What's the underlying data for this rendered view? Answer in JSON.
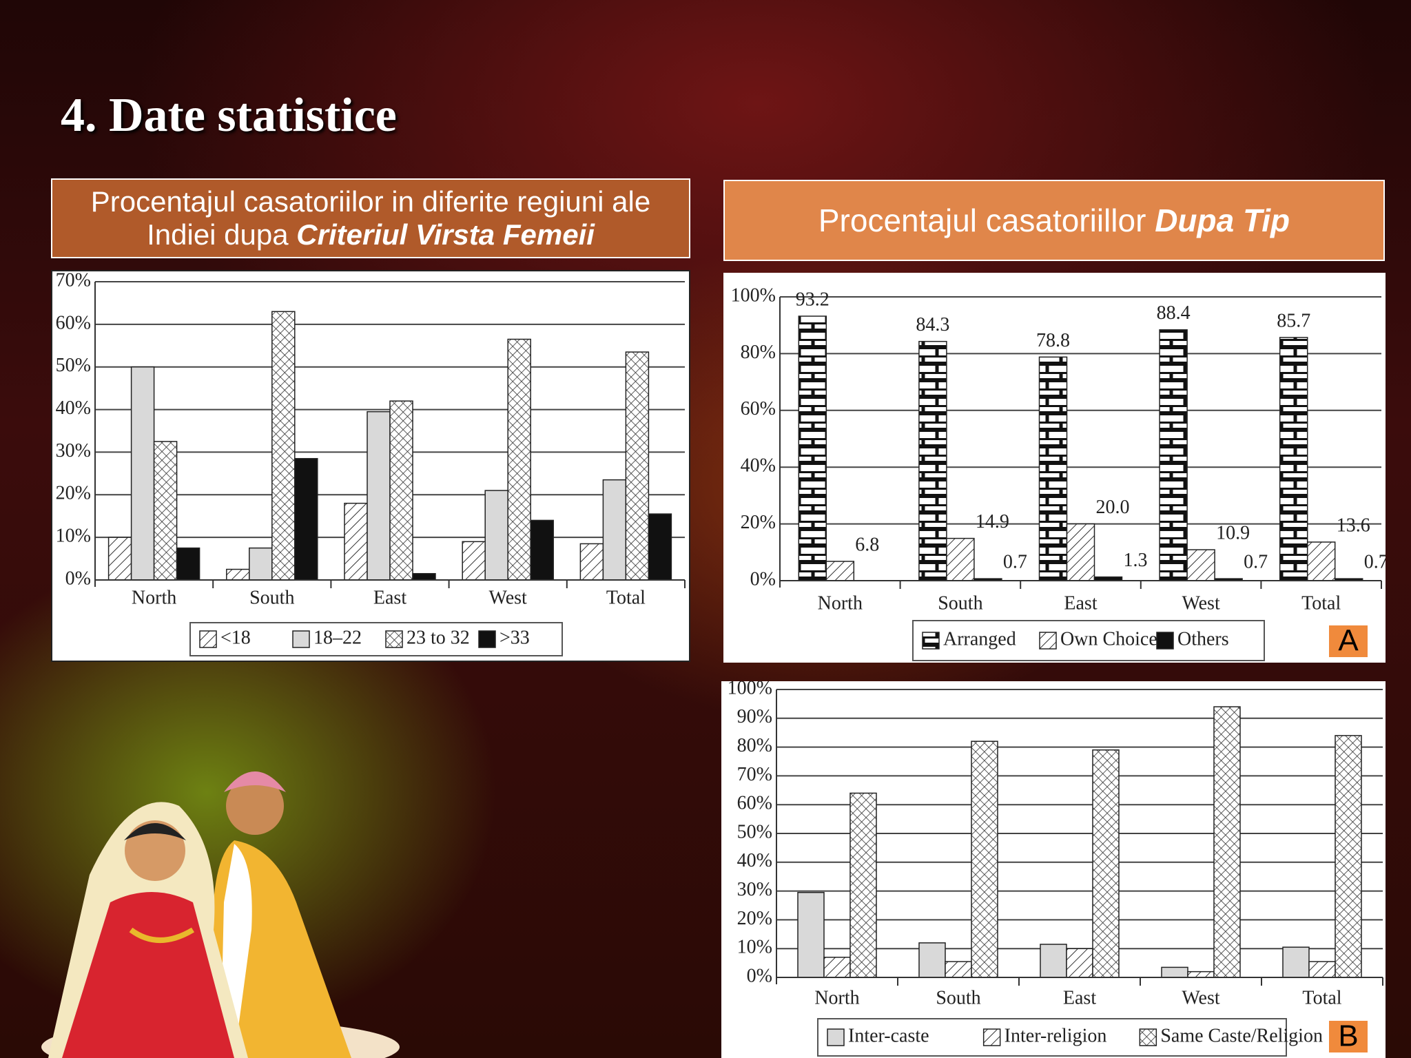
{
  "header": {
    "title": "4. Date statistice"
  },
  "chart_data": [
    {
      "type": "bar",
      "title": "Procentajul casatoriilor in diferite regiuni ale Indiei dupa",
      "title_emphasis": "Criteriul Virsta Femeii",
      "categories": [
        "North",
        "South",
        "East",
        "West",
        "Total"
      ],
      "series": [
        {
          "name": "<18",
          "color": "#ffffff",
          "pattern": "diagonal",
          "values": [
            10,
            2.5,
            18,
            9,
            8.5
          ]
        },
        {
          "name": "18–22",
          "color": "#d9d9d9",
          "pattern": "solid",
          "values": [
            50,
            7.5,
            39.5,
            21,
            23.5
          ]
        },
        {
          "name": "23 to 32",
          "color": "#ffffff",
          "pattern": "crosshatch",
          "values": [
            32.5,
            63,
            42,
            56.5,
            53.5
          ]
        },
        {
          "name": ">33",
          "color": "#111111",
          "pattern": "solid",
          "values": [
            7.5,
            28.5,
            1.5,
            14,
            15.5
          ]
        }
      ],
      "ylim": [
        0,
        70
      ],
      "yticks": [
        {
          "value": 0,
          "label": "0%"
        },
        {
          "value": 10,
          "label": "10%"
        },
        {
          "value": 20,
          "label": "20%"
        },
        {
          "value": 30,
          "label": "30%"
        },
        {
          "value": 40,
          "label": "40%"
        },
        {
          "value": 50,
          "label": "50%"
        },
        {
          "value": 60,
          "label": "60%"
        },
        {
          "value": 70,
          "label": "70%"
        }
      ],
      "grid": true,
      "legend": "bottom"
    },
    {
      "type": "bar",
      "title": "Procentajul casatoriillor",
      "title_emphasis": "Dupa Tip",
      "panel_label": "A",
      "categories": [
        "North",
        "South",
        "East",
        "West",
        "Total"
      ],
      "series": [
        {
          "name": "Arranged",
          "color": "#ffffff",
          "pattern": "brick",
          "values": [
            93.2,
            84.3,
            78.8,
            88.4,
            85.7
          ]
        },
        {
          "name": "Own Choice",
          "color": "#ffffff",
          "pattern": "diagonal",
          "values": [
            6.8,
            14.9,
            20,
            10.9,
            13.6
          ],
          "value_labels": [
            "6.8",
            "14.9",
            "20.0",
            "10.9",
            "13.6"
          ]
        },
        {
          "name": "Others",
          "color": "#111111",
          "pattern": "solid",
          "values": [
            null,
            0.7,
            1.3,
            0.7,
            0.7
          ]
        }
      ],
      "ylim": [
        0,
        100
      ],
      "yticks": [
        {
          "value": 0,
          "label": "0%"
        },
        {
          "value": 20,
          "label": "20%"
        },
        {
          "value": 40,
          "label": "40%"
        },
        {
          "value": 60,
          "label": "60%"
        },
        {
          "value": 80,
          "label": "80%"
        },
        {
          "value": 100,
          "label": "100%"
        }
      ],
      "grid": true,
      "legend": "bottom",
      "data_labels": true
    },
    {
      "type": "bar",
      "panel_label": "B",
      "categories": [
        "North",
        "South",
        "East",
        "West",
        "Total"
      ],
      "series": [
        {
          "name": "Inter-caste",
          "color": "#d9d9d9",
          "pattern": "solid",
          "values": [
            29.5,
            12,
            11.5,
            3.5,
            10.5
          ]
        },
        {
          "name": "Inter-religion",
          "color": "#ffffff",
          "pattern": "diagonal",
          "values": [
            7,
            5.5,
            10,
            2,
            5.5
          ]
        },
        {
          "name": "Same Caste/Religion",
          "color": "#ffffff",
          "pattern": "crosshatch",
          "values": [
            64,
            82,
            79,
            94,
            84
          ]
        }
      ],
      "ylim": [
        0,
        100
      ],
      "yticks": [
        {
          "value": 0,
          "label": "0%"
        },
        {
          "value": 10,
          "label": "10%"
        },
        {
          "value": 20,
          "label": "20%"
        },
        {
          "value": 30,
          "label": "30%"
        },
        {
          "value": 40,
          "label": "40%"
        },
        {
          "value": 50,
          "label": "50%"
        },
        {
          "value": 60,
          "label": "60%"
        },
        {
          "value": 70,
          "label": "70%"
        },
        {
          "value": 80,
          "label": "80%"
        },
        {
          "value": 90,
          "label": "90%"
        },
        {
          "value": 100,
          "label": "100%"
        }
      ],
      "grid": true,
      "legend": "bottom"
    }
  ]
}
